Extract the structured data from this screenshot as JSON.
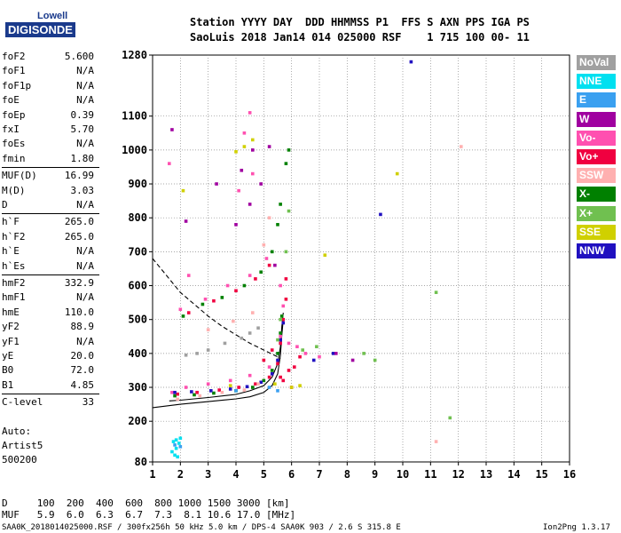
{
  "logo": {
    "line1": "Lowell",
    "line2": "DIGISONDE"
  },
  "header": {
    "line1": "Station YYYY DAY  DDD HHMMSS P1  FFS S AXN PPS IGA PS",
    "line2": "SaoLuis 2018 Jan14 014 025000 RSF    1 715 100 00- 11"
  },
  "params": [
    {
      "k": "foF2",
      "v": "5.600"
    },
    {
      "k": "foF1",
      "v": "N/A"
    },
    {
      "k": "foF1p",
      "v": "N/A"
    },
    {
      "k": "foE",
      "v": "N/A"
    },
    {
      "k": "foEp",
      "v": "0.39"
    },
    {
      "k": "fxI",
      "v": "5.70"
    },
    {
      "k": "foEs",
      "v": "N/A"
    },
    {
      "k": "fmin",
      "v": "1.80"
    },
    {
      "k": "MUF(D)",
      "v": "16.99"
    },
    {
      "k": "M(D)",
      "v": "3.03"
    },
    {
      "k": "D",
      "v": "N/A"
    },
    {
      "k": "h`F",
      "v": "265.0"
    },
    {
      "k": "h`F2",
      "v": "265.0"
    },
    {
      "k": "h`E",
      "v": "N/A"
    },
    {
      "k": "h`Es",
      "v": "N/A"
    },
    {
      "k": "hmF2",
      "v": "332.9"
    },
    {
      "k": "hmF1",
      "v": "N/A"
    },
    {
      "k": "hmE",
      "v": "110.0"
    },
    {
      "k": "yF2",
      "v": "88.9"
    },
    {
      "k": "yF1",
      "v": "N/A"
    },
    {
      "k": "yE",
      "v": "20.0"
    },
    {
      "k": "B0",
      "v": "72.0"
    },
    {
      "k": "B1",
      "v": "4.85"
    },
    {
      "k": "C-level",
      "v": "33"
    }
  ],
  "auto": {
    "line1": "Auto:",
    "line2": "Artist5",
    "line3": "500200"
  },
  "footer": {
    "d_row": "D     100  200  400  600  800 1000 1500 3000 [km]",
    "muf_row": "MUF   5.9  6.0  6.3  6.7  7.3  8.1 10.6 17.0 [MHz]",
    "file_line": "SAA0K_2018014025000.RSF / 300fx256h 50 kHz 5.0 km / DPS-4 SAA0K 903 / 2.6 S 315.8 E",
    "version": "Ion2Png 1.3.17"
  },
  "legend": [
    {
      "label": "NoVal",
      "color": "#a0a0a0"
    },
    {
      "label": "NNE",
      "color": "#00e0f0"
    },
    {
      "label": "E",
      "color": "#3aa0f0"
    },
    {
      "label": "W",
      "color": "#a000a0"
    },
    {
      "label": "Vo-",
      "color": "#ff50b0"
    },
    {
      "label": "Vo+",
      "color": "#f00040"
    },
    {
      "label": "SSW",
      "color": "#ffb0b0"
    },
    {
      "label": "X-",
      "color": "#008000"
    },
    {
      "label": "X+",
      "color": "#70c050"
    },
    {
      "label": "SSE",
      "color": "#d0d000"
    },
    {
      "label": "NNW",
      "color": "#2010c0"
    }
  ],
  "chart_data": {
    "type": "scatter",
    "title": "",
    "xlabel": "",
    "ylabel": "",
    "xlim": [
      1,
      16
    ],
    "ylim": [
      80,
      1280
    ],
    "x_ticks": [
      1,
      2,
      3,
      4,
      5,
      6,
      7,
      8,
      9,
      10,
      11,
      12,
      13,
      14,
      15,
      16
    ],
    "y_ticks": [
      80,
      200,
      300,
      400,
      500,
      600,
      700,
      800,
      900,
      1000,
      1100,
      1280
    ],
    "grid": true,
    "legend_position": "right",
    "series": [
      {
        "name": "X-",
        "values": [
          [
            1.8,
            275
          ],
          [
            2.5,
            278
          ],
          [
            3.2,
            283
          ],
          [
            4.0,
            290
          ],
          [
            4.6,
            300
          ],
          [
            5.0,
            320
          ],
          [
            5.3,
            350
          ],
          [
            5.5,
            400
          ],
          [
            5.6,
            460
          ],
          [
            5.65,
            510
          ],
          [
            2.1,
            510
          ],
          [
            2.8,
            545
          ],
          [
            3.5,
            565
          ],
          [
            4.3,
            600
          ],
          [
            4.9,
            640
          ],
          [
            5.3,
            700
          ],
          [
            5.5,
            780
          ],
          [
            5.6,
            840
          ],
          [
            5.9,
            1000
          ],
          [
            5.8,
            960
          ]
        ]
      },
      {
        "name": "Vo+",
        "values": [
          [
            1.9,
            280
          ],
          [
            2.6,
            285
          ],
          [
            3.4,
            292
          ],
          [
            4.1,
            300
          ],
          [
            4.7,
            310
          ],
          [
            5.2,
            330
          ],
          [
            5.5,
            370
          ],
          [
            5.6,
            430
          ],
          [
            5.7,
            500
          ],
          [
            5.8,
            560
          ],
          [
            5.8,
            620
          ],
          [
            2.3,
            520
          ],
          [
            3.2,
            555
          ],
          [
            4.0,
            585
          ],
          [
            4.7,
            620
          ],
          [
            5.2,
            660
          ],
          [
            5.0,
            380
          ],
          [
            5.3,
            410
          ],
          [
            5.6,
            330
          ],
          [
            5.9,
            350
          ],
          [
            6.1,
            360
          ],
          [
            6.3,
            390
          ],
          [
            6.0,
            300
          ],
          [
            5.7,
            320
          ]
        ]
      },
      {
        "name": "Vo-",
        "values": [
          [
            1.7,
            285
          ],
          [
            2.2,
            300
          ],
          [
            3.0,
            310
          ],
          [
            3.8,
            320
          ],
          [
            4.5,
            335
          ],
          [
            5.2,
            360
          ],
          [
            5.6,
            450
          ],
          [
            5.7,
            540
          ],
          [
            2.0,
            530
          ],
          [
            2.9,
            560
          ],
          [
            3.7,
            600
          ],
          [
            4.5,
            630
          ],
          [
            5.1,
            680
          ],
          [
            5.6,
            600
          ],
          [
            5.9,
            430
          ],
          [
            6.2,
            420
          ],
          [
            6.5,
            400
          ],
          [
            7.0,
            390
          ],
          [
            4.1,
            880
          ],
          [
            4.6,
            930
          ],
          [
            4.5,
            1110
          ],
          [
            4.3,
            1050
          ],
          [
            1.6,
            960
          ],
          [
            2.3,
            630
          ]
        ]
      },
      {
        "name": "NNW",
        "values": [
          [
            1.8,
            285
          ],
          [
            2.4,
            287
          ],
          [
            3.1,
            290
          ],
          [
            3.8,
            295
          ],
          [
            4.4,
            302
          ],
          [
            4.9,
            315
          ],
          [
            5.3,
            340
          ],
          [
            5.5,
            380
          ],
          [
            5.6,
            440
          ],
          [
            5.7,
            490
          ],
          [
            9.2,
            810
          ],
          [
            10.3,
            1260
          ],
          [
            6.8,
            380
          ],
          [
            7.5,
            400
          ]
        ]
      },
      {
        "name": "W",
        "values": [
          [
            4.0,
            780
          ],
          [
            4.5,
            840
          ],
          [
            4.9,
            900
          ],
          [
            4.2,
            940
          ],
          [
            4.6,
            1000
          ],
          [
            3.3,
            900
          ],
          [
            5.4,
            660
          ],
          [
            5.2,
            1010
          ],
          [
            1.7,
            1060
          ],
          [
            2.2,
            790
          ],
          [
            7.6,
            400
          ],
          [
            8.2,
            380
          ]
        ]
      },
      {
        "name": "SSE",
        "values": [
          [
            4.0,
            995
          ],
          [
            4.3,
            1010
          ],
          [
            4.6,
            1030
          ],
          [
            6.0,
            300
          ],
          [
            6.3,
            305
          ],
          [
            5.4,
            310
          ],
          [
            2.1,
            880
          ],
          [
            7.2,
            690
          ],
          [
            9.8,
            930
          ],
          [
            3.8,
            305
          ]
        ]
      },
      {
        "name": "SSW",
        "values": [
          [
            1.9,
            265
          ],
          [
            2.7,
            275
          ],
          [
            3.5,
            285
          ],
          [
            4.3,
            292
          ],
          [
            4.8,
            310
          ],
          [
            3.0,
            470
          ],
          [
            3.9,
            495
          ],
          [
            4.6,
            520
          ],
          [
            5.0,
            720
          ],
          [
            5.2,
            800
          ],
          [
            12.1,
            1010
          ],
          [
            11.2,
            140
          ]
        ]
      },
      {
        "name": "X+",
        "values": [
          [
            5.5,
            440
          ],
          [
            5.6,
            500
          ],
          [
            5.8,
            700
          ],
          [
            5.9,
            820
          ],
          [
            6.4,
            410
          ],
          [
            6.9,
            420
          ],
          [
            8.6,
            400
          ],
          [
            9.0,
            380
          ],
          [
            11.7,
            210
          ],
          [
            11.2,
            580
          ]
        ]
      },
      {
        "name": "NNE",
        "values": [
          [
            1.75,
            140
          ],
          [
            1.85,
            145
          ],
          [
            1.95,
            135
          ],
          [
            1.8,
            100
          ],
          [
            1.9,
            95
          ],
          [
            1.85,
            120
          ],
          [
            2.0,
            150
          ],
          [
            1.7,
            110
          ]
        ]
      },
      {
        "name": "E",
        "values": [
          [
            1.8,
            130
          ],
          [
            2.0,
            125
          ],
          [
            5.2,
            300
          ],
          [
            5.5,
            290
          ],
          [
            4.0,
            290
          ]
        ]
      },
      {
        "name": "NoVal",
        "values": [
          [
            3.0,
            410
          ],
          [
            3.6,
            430
          ],
          [
            4.2,
            445
          ],
          [
            4.5,
            460
          ],
          [
            4.8,
            475
          ],
          [
            2.2,
            395
          ],
          [
            2.6,
            400
          ]
        ]
      }
    ],
    "curves": [
      {
        "name": "dashed-virtual-height",
        "style": "dashed",
        "points": [
          [
            1,
            680
          ],
          [
            1.5,
            630
          ],
          [
            2,
            580
          ],
          [
            2.5,
            545
          ],
          [
            3,
            510
          ],
          [
            3.5,
            480
          ],
          [
            4,
            455
          ],
          [
            4.5,
            430
          ],
          [
            5,
            410
          ],
          [
            5.5,
            390
          ],
          [
            5.6,
            385
          ]
        ]
      },
      {
        "name": "profile-lower",
        "style": "solid",
        "points": [
          [
            1,
            240
          ],
          [
            2,
            250
          ],
          [
            3,
            258
          ],
          [
            4,
            266
          ],
          [
            4.5,
            272
          ],
          [
            5,
            285
          ],
          [
            5.3,
            305
          ],
          [
            5.5,
            340
          ],
          [
            5.6,
            395
          ],
          [
            5.65,
            455
          ],
          [
            5.7,
            500
          ]
        ]
      },
      {
        "name": "profile-upper",
        "style": "solid",
        "points": [
          [
            1.6,
            260
          ],
          [
            2,
            262
          ],
          [
            3,
            270
          ],
          [
            4,
            279
          ],
          [
            4.5,
            290
          ],
          [
            5,
            305
          ],
          [
            5.3,
            330
          ],
          [
            5.5,
            370
          ],
          [
            5.6,
            420
          ],
          [
            5.65,
            480
          ],
          [
            5.7,
            520
          ]
        ]
      }
    ]
  }
}
